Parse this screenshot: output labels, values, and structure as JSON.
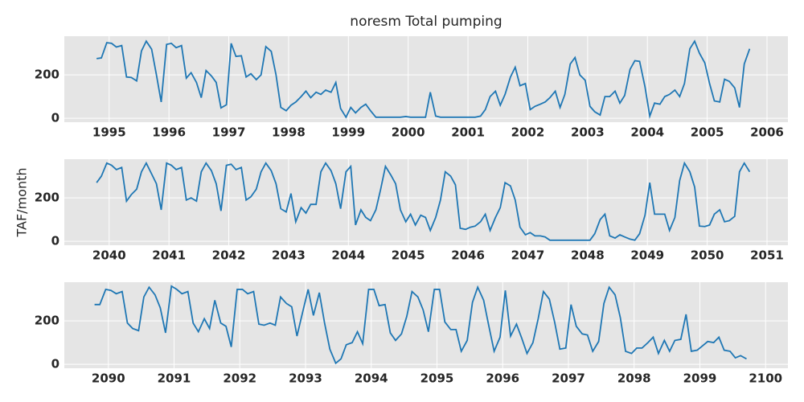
{
  "chart_data": [
    {
      "type": "line",
      "title": "noresm Total pumping",
      "color": "#1f77b4",
      "x": [
        1994.79,
        1994.87,
        1994.96,
        1995.04,
        1995.12,
        1995.21,
        1995.29,
        1995.37,
        1995.46,
        1995.54,
        1995.62,
        1995.71,
        1995.79,
        1995.87,
        1995.96,
        1996.04,
        1996.12,
        1996.21,
        1996.29,
        1996.37,
        1996.46,
        1996.54,
        1996.62,
        1996.71,
        1996.79,
        1996.87,
        1996.96,
        1997.04,
        1997.12,
        1997.21,
        1997.29,
        1997.37,
        1997.46,
        1997.54,
        1997.62,
        1997.71,
        1997.79,
        1997.87,
        1997.96,
        1998.04,
        1998.12,
        1998.21,
        1998.29,
        1998.37,
        1998.46,
        1998.54,
        1998.62,
        1998.71,
        1998.79,
        1998.87,
        1998.96,
        1999.04,
        1999.12,
        1999.21,
        1999.29,
        1999.37,
        1999.46,
        1999.54,
        1999.62,
        1999.71,
        1999.79,
        1999.87,
        1999.96,
        2000.04,
        2000.12,
        2000.21,
        2000.29,
        2000.37,
        2000.46,
        2000.54,
        2000.62,
        2000.71,
        2000.79,
        2000.87,
        2000.96,
        2001.04,
        2001.12,
        2001.21,
        2001.29,
        2001.37,
        2001.46,
        2001.54,
        2001.62,
        2001.71,
        2001.79,
        2001.87,
        2001.96,
        2002.04,
        2002.12,
        2002.21,
        2002.29,
        2002.37,
        2002.46,
        2002.54,
        2002.62,
        2002.71,
        2002.79,
        2002.87,
        2002.96,
        2003.04,
        2003.12,
        2003.21,
        2003.29,
        2003.37,
        2003.46,
        2003.54,
        2003.62,
        2003.71,
        2003.79,
        2003.87,
        2003.96,
        2004.04,
        2004.12,
        2004.21,
        2004.29,
        2004.37,
        2004.46,
        2004.54,
        2004.62,
        2004.71,
        2004.79,
        2004.87,
        2004.96,
        2005.04,
        2005.12,
        2005.21,
        2005.29,
        2005.37,
        2005.46,
        2005.54,
        2005.62,
        2005.71
      ],
      "values": [
        275,
        278,
        348,
        345,
        328,
        335,
        190,
        188,
        172,
        310,
        355,
        318,
        200,
        75,
        340,
        345,
        325,
        335,
        185,
        210,
        165,
        95,
        220,
        195,
        165,
        48,
        62,
        345,
        285,
        288,
        190,
        205,
        178,
        200,
        330,
        308,
        200,
        50,
        35,
        60,
        75,
        100,
        125,
        95,
        120,
        110,
        130,
        120,
        165,
        45,
        5,
        50,
        25,
        50,
        65,
        35,
        5,
        5,
        5,
        5,
        5,
        5,
        8,
        5,
        5,
        5,
        5,
        120,
        10,
        5,
        5,
        5,
        5,
        5,
        5,
        5,
        5,
        10,
        40,
        100,
        125,
        60,
        110,
        190,
        235,
        150,
        160,
        40,
        55,
        65,
        75,
        95,
        125,
        50,
        110,
        250,
        280,
        200,
        175,
        55,
        30,
        15,
        100,
        100,
        125,
        70,
        105,
        225,
        265,
        262,
        145,
        10,
        70,
        65,
        100,
        110,
        130,
        100,
        160,
        320,
        355,
        300,
        255,
        160,
        80,
        75,
        180,
        170,
        140,
        50,
        250,
        320
      ],
      "xlim": [
        1994.25,
        2006.35
      ],
      "ylim": [
        -18,
        378
      ],
      "xticks": [
        1995,
        1996,
        1997,
        1998,
        1999,
        2000,
        2001,
        2002,
        2003,
        2004,
        2005,
        2006
      ],
      "yticks": [
        0,
        200
      ],
      "grid": true
    },
    {
      "type": "line",
      "y_label": "TAF/month",
      "color": "#1f77b4",
      "x": [
        2039.79,
        2039.87,
        2039.96,
        2040.04,
        2040.12,
        2040.21,
        2040.29,
        2040.37,
        2040.46,
        2040.54,
        2040.62,
        2040.71,
        2040.79,
        2040.87,
        2040.96,
        2041.04,
        2041.12,
        2041.21,
        2041.29,
        2041.37,
        2041.46,
        2041.54,
        2041.62,
        2041.71,
        2041.79,
        2041.87,
        2041.96,
        2042.04,
        2042.12,
        2042.21,
        2042.29,
        2042.37,
        2042.46,
        2042.54,
        2042.62,
        2042.71,
        2042.79,
        2042.87,
        2042.96,
        2043.04,
        2043.12,
        2043.21,
        2043.29,
        2043.37,
        2043.46,
        2043.54,
        2043.62,
        2043.71,
        2043.79,
        2043.87,
        2043.96,
        2044.04,
        2044.12,
        2044.21,
        2044.29,
        2044.37,
        2044.46,
        2044.54,
        2044.62,
        2044.71,
        2044.79,
        2044.87,
        2044.96,
        2045.04,
        2045.12,
        2045.21,
        2045.29,
        2045.37,
        2045.46,
        2045.54,
        2045.62,
        2045.71,
        2045.79,
        2045.87,
        2045.96,
        2046.04,
        2046.12,
        2046.21,
        2046.29,
        2046.37,
        2046.46,
        2046.54,
        2046.62,
        2046.71,
        2046.79,
        2046.87,
        2046.96,
        2047.04,
        2047.12,
        2047.21,
        2047.29,
        2047.37,
        2047.46,
        2047.54,
        2047.62,
        2047.71,
        2047.79,
        2047.87,
        2047.96,
        2048.04,
        2048.12,
        2048.21,
        2048.29,
        2048.37,
        2048.46,
        2048.54,
        2048.62,
        2048.71,
        2048.79,
        2048.87,
        2048.96,
        2049.04,
        2049.12,
        2049.21,
        2049.29,
        2049.37,
        2049.46,
        2049.54,
        2049.62,
        2049.71,
        2049.79,
        2049.87,
        2049.96,
        2050.04,
        2050.12,
        2050.21,
        2050.29,
        2050.37,
        2050.46,
        2050.54,
        2050.62,
        2050.71
      ],
      "values": [
        270,
        300,
        360,
        350,
        330,
        340,
        185,
        215,
        240,
        320,
        360,
        310,
        265,
        145,
        360,
        350,
        330,
        340,
        190,
        200,
        185,
        320,
        360,
        325,
        265,
        140,
        350,
        355,
        330,
        340,
        190,
        205,
        240,
        320,
        360,
        325,
        265,
        150,
        135,
        220,
        90,
        155,
        130,
        170,
        170,
        320,
        360,
        325,
        265,
        150,
        320,
        345,
        75,
        145,
        110,
        95,
        145,
        240,
        345,
        305,
        265,
        145,
        90,
        125,
        75,
        120,
        110,
        50,
        110,
        190,
        320,
        300,
        260,
        60,
        55,
        65,
        70,
        90,
        125,
        50,
        110,
        155,
        270,
        255,
        190,
        65,
        30,
        40,
        25,
        25,
        20,
        5,
        5,
        5,
        5,
        5,
        5,
        5,
        5,
        5,
        35,
        100,
        125,
        25,
        15,
        30,
        20,
        10,
        5,
        35,
        120,
        270,
        125,
        125,
        125,
        50,
        110,
        280,
        360,
        320,
        250,
        70,
        68,
        75,
        125,
        145,
        90,
        95,
        115,
        320,
        360,
        320
      ],
      "xlim": [
        2039.25,
        2051.35
      ],
      "ylim": [
        -18,
        378
      ],
      "xticks": [
        2040,
        2041,
        2042,
        2043,
        2044,
        2045,
        2046,
        2047,
        2048,
        2049,
        2050,
        2051
      ],
      "yticks": [
        0,
        200
      ],
      "grid": true
    },
    {
      "type": "line",
      "color": "#1f77b4",
      "x": [
        2089.79,
        2089.87,
        2089.96,
        2090.04,
        2090.12,
        2090.21,
        2090.29,
        2090.37,
        2090.46,
        2090.54,
        2090.62,
        2090.71,
        2090.79,
        2090.87,
        2090.96,
        2091.04,
        2091.12,
        2091.21,
        2091.29,
        2091.37,
        2091.46,
        2091.54,
        2091.62,
        2091.71,
        2091.79,
        2091.87,
        2091.96,
        2092.04,
        2092.12,
        2092.21,
        2092.29,
        2092.37,
        2092.46,
        2092.54,
        2092.62,
        2092.71,
        2092.79,
        2092.87,
        2092.96,
        2093.04,
        2093.12,
        2093.21,
        2093.29,
        2093.37,
        2093.46,
        2093.54,
        2093.62,
        2093.71,
        2093.79,
        2093.87,
        2093.96,
        2094.04,
        2094.12,
        2094.21,
        2094.29,
        2094.37,
        2094.46,
        2094.54,
        2094.62,
        2094.71,
        2094.79,
        2094.87,
        2094.96,
        2095.04,
        2095.12,
        2095.21,
        2095.29,
        2095.37,
        2095.46,
        2095.54,
        2095.62,
        2095.71,
        2095.79,
        2095.87,
        2095.96,
        2096.04,
        2096.12,
        2096.21,
        2096.29,
        2096.37,
        2096.46,
        2096.54,
        2096.62,
        2096.71,
        2096.79,
        2096.87,
        2096.96,
        2097.04,
        2097.12,
        2097.21,
        2097.29,
        2097.37,
        2097.46,
        2097.54,
        2097.62,
        2097.71,
        2097.79,
        2097.87,
        2097.96,
        2098.04,
        2098.12,
        2098.21,
        2098.29,
        2098.37,
        2098.46,
        2098.54,
        2098.62,
        2098.71,
        2098.79,
        2098.87,
        2098.96,
        2099.04,
        2099.12,
        2099.21,
        2099.29,
        2099.37,
        2099.46,
        2099.54,
        2099.62,
        2099.71
      ],
      "values": [
        275,
        275,
        345,
        340,
        325,
        335,
        190,
        165,
        155,
        310,
        355,
        320,
        260,
        145,
        360,
        345,
        325,
        335,
        190,
        150,
        210,
        165,
        295,
        190,
        175,
        80,
        345,
        345,
        325,
        335,
        185,
        180,
        190,
        180,
        310,
        280,
        265,
        130,
        245,
        345,
        225,
        330,
        190,
        70,
        5,
        25,
        90,
        100,
        150,
        95,
        345,
        345,
        270,
        275,
        145,
        110,
        140,
        220,
        335,
        310,
        250,
        150,
        345,
        345,
        195,
        160,
        160,
        60,
        110,
        285,
        355,
        295,
        175,
        60,
        125,
        340,
        130,
        185,
        120,
        50,
        100,
        210,
        335,
        300,
        195,
        70,
        75,
        275,
        175,
        140,
        135,
        60,
        105,
        280,
        355,
        320,
        215,
        60,
        50,
        75,
        75,
        100,
        125,
        50,
        110,
        60,
        110,
        115,
        230,
        60,
        65,
        85,
        105,
        100,
        125,
        65,
        60,
        30,
        40,
        25
      ],
      "xlim": [
        2089.33,
        2100.34
      ],
      "ylim": [
        -18,
        378
      ],
      "xticks": [
        2090,
        2091,
        2092,
        2093,
        2094,
        2095,
        2096,
        2097,
        2098,
        2099,
        2100
      ],
      "yticks": [
        0,
        200
      ],
      "grid": true
    }
  ]
}
